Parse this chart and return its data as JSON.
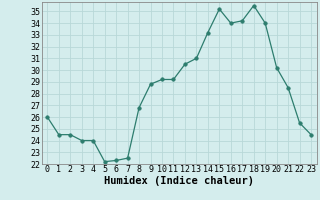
{
  "title": "",
  "xlabel": "Humidex (Indice chaleur)",
  "x": [
    0,
    1,
    2,
    3,
    4,
    5,
    6,
    7,
    8,
    9,
    10,
    11,
    12,
    13,
    14,
    15,
    16,
    17,
    18,
    19,
    20,
    21,
    22,
    23
  ],
  "y": [
    26.0,
    24.5,
    24.5,
    24.0,
    24.0,
    22.2,
    22.3,
    22.5,
    26.8,
    28.8,
    29.2,
    29.2,
    30.5,
    31.0,
    33.2,
    35.2,
    34.0,
    34.2,
    35.5,
    34.0,
    30.2,
    28.5,
    25.5,
    24.5
  ],
  "line_color": "#2d7d6e",
  "marker_size": 2.5,
  "bg_color": "#d4eded",
  "grid_color": "#b8d8d8",
  "ylim": [
    22,
    35.8
  ],
  "xlim": [
    -0.5,
    23.5
  ],
  "yticks": [
    22,
    23,
    24,
    25,
    26,
    27,
    28,
    29,
    30,
    31,
    32,
    33,
    34,
    35
  ],
  "xticks": [
    0,
    1,
    2,
    3,
    4,
    5,
    6,
    7,
    8,
    9,
    10,
    11,
    12,
    13,
    14,
    15,
    16,
    17,
    18,
    19,
    20,
    21,
    22,
    23
  ],
  "tick_fontsize": 6,
  "xlabel_fontsize": 7.5,
  "spine_color": "#888888"
}
